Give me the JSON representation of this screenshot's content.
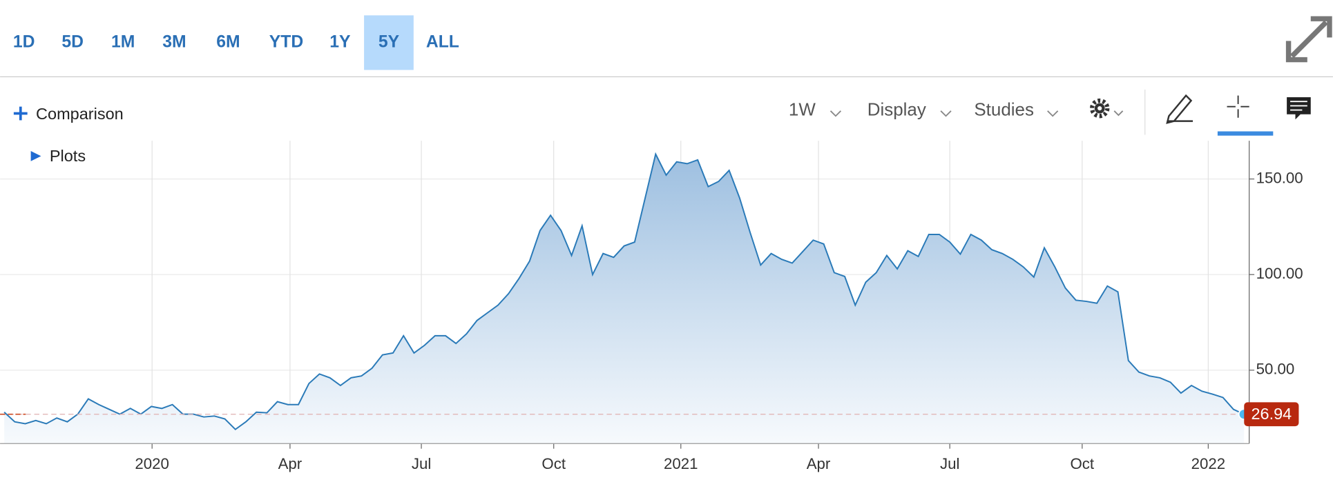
{
  "toolbar": {
    "ranges": [
      "1D",
      "5D",
      "1M",
      "3M",
      "6M",
      "YTD",
      "1Y",
      "5Y",
      "ALL"
    ],
    "active_range": "5Y",
    "comparison": "Comparison",
    "interval": "1W",
    "menus": [
      "Display",
      "Studies"
    ],
    "plots": "Plots"
  },
  "chart_data": {
    "type": "area",
    "color": "#2a7ab8",
    "values": [
      28,
      23,
      22,
      23.7,
      22,
      25,
      23,
      27,
      35,
      32,
      29.5,
      27,
      30,
      27,
      31,
      30,
      32,
      27,
      27,
      25.5,
      26,
      24.5,
      19,
      23,
      28,
      27.7,
      33.5,
      32,
      32,
      43,
      48,
      46,
      42,
      46,
      47,
      51,
      58,
      59,
      68,
      59,
      63,
      68,
      68,
      64,
      69,
      76,
      80,
      84,
      90,
      98,
      107,
      123,
      131,
      123,
      110,
      125.5,
      100,
      111,
      109,
      115,
      117,
      140,
      163,
      152,
      159,
      158,
      160,
      146,
      148.7,
      154.5,
      140,
      122,
      105,
      111,
      108,
      106,
      112,
      118,
      116,
      101,
      99,
      84,
      96,
      101,
      110,
      103,
      112.5,
      109.5,
      121,
      121,
      117,
      110.7,
      121,
      118,
      113,
      111,
      108,
      104,
      98.7,
      114,
      104,
      93,
      86.6,
      86,
      85,
      94,
      91,
      55,
      49,
      47,
      46,
      43.7,
      38,
      42,
      39,
      37.5,
      35.7,
      29.5,
      26.94
    ],
    "last_price": 26.94,
    "last_price_label": "26.94",
    "xlim": [
      -0.4,
      118.5
    ],
    "xticks": [
      {
        "value": 14.07,
        "label": "2020"
      },
      {
        "value": 27.2,
        "label": "Apr"
      },
      {
        "value": 39.7,
        "label": "Jul"
      },
      {
        "value": 52.3,
        "label": "Oct"
      },
      {
        "value": 64.4,
        "label": "2021"
      },
      {
        "value": 77.5,
        "label": "Apr"
      },
      {
        "value": 90,
        "label": "Jul"
      },
      {
        "value": 102.6,
        "label": "Oct"
      },
      {
        "value": 114.6,
        "label": "2022"
      }
    ],
    "ylim": [
      11.6,
      170
    ],
    "yticks": [
      {
        "value": 50,
        "label": "50.00"
      },
      {
        "value": 100,
        "label": "100.00"
      },
      {
        "value": 150,
        "label": "150.00"
      }
    ],
    "grid": true
  }
}
